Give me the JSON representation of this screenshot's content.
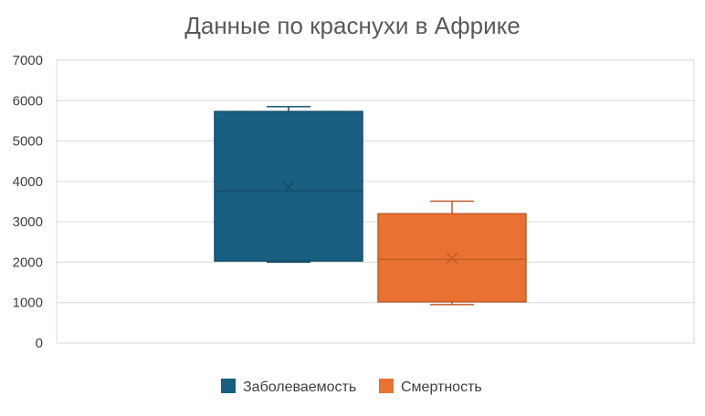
{
  "chart_data": {
    "type": "boxplot",
    "title": "Данные по краснухи в Африке",
    "xlabel": "",
    "ylabel": "",
    "ylim": [
      0,
      7000
    ],
    "yticks": [
      0,
      1000,
      2000,
      3000,
      4000,
      5000,
      6000,
      7000
    ],
    "grid": true,
    "legend_position": "bottom",
    "series": [
      {
        "name": "Заболеваемость",
        "color": "#185F82",
        "min": 2000,
        "q1": 2030,
        "median": 3760,
        "mean": 3860,
        "q3": 5730,
        "max": 5850
      },
      {
        "name": "Смертность",
        "color": "#E97132",
        "min": 950,
        "q1": 1020,
        "median": 2070,
        "mean": 2100,
        "q3": 3200,
        "max": 3510
      }
    ]
  }
}
